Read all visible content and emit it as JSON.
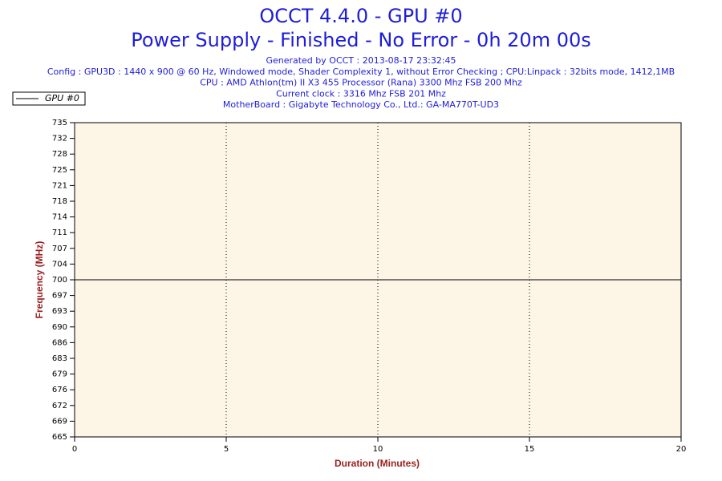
{
  "chart_data": {
    "type": "line",
    "title": "OCCT 4.4.0 - GPU #0",
    "subtitle": "Power Supply - Finished - No Error - 0h 20m 00s",
    "info_lines": [
      "Generated by OCCT : 2013-08-17 23:32:45",
      "Config : GPU3D : 1440 x 900 @ 60 Hz, Windowed mode, Shader Complexity 1, without Error Checking ; CPU:Linpack : 32bits mode, 1412,1MB",
      "CPU : AMD Athlon(tm) II X3 455 Processor (Rana) 3300 Mhz FSB 200 Mhz",
      "Current clock : 3316 Mhz FSB 201 Mhz",
      "MotherBoard : Gigabyte Technology Co., Ltd.: GA-MA770T-UD3"
    ],
    "x_label": "Duration (Minutes)",
    "y_label": "Frequency (MHz)",
    "x": [
      0,
      20
    ],
    "series": [
      {
        "name": "GPU #0",
        "color": "#000000",
        "values": [
          700,
          700
        ]
      }
    ],
    "xlim": [
      0,
      20
    ],
    "xticks": [
      0,
      5,
      10,
      15,
      20
    ],
    "ylim": [
      665,
      735
    ],
    "yticks": [
      665,
      {
        "value": 668.5,
        "label": "669"
      },
      672,
      {
        "value": 675.5,
        "label": "676"
      },
      679,
      {
        "value": 682.5,
        "label": "683"
      },
      686,
      {
        "value": 689.5,
        "label": "690"
      },
      693,
      {
        "value": 696.5,
        "label": "697"
      },
      700,
      {
        "value": 703.5,
        "label": "704"
      },
      707,
      {
        "value": 710.5,
        "label": "711"
      },
      714,
      {
        "value": 717.5,
        "label": "718"
      },
      721,
      {
        "value": 724.5,
        "label": "725"
      },
      728,
      {
        "value": 731.5,
        "label": "732"
      },
      735
    ],
    "grid": "x",
    "legend": "top-left"
  }
}
